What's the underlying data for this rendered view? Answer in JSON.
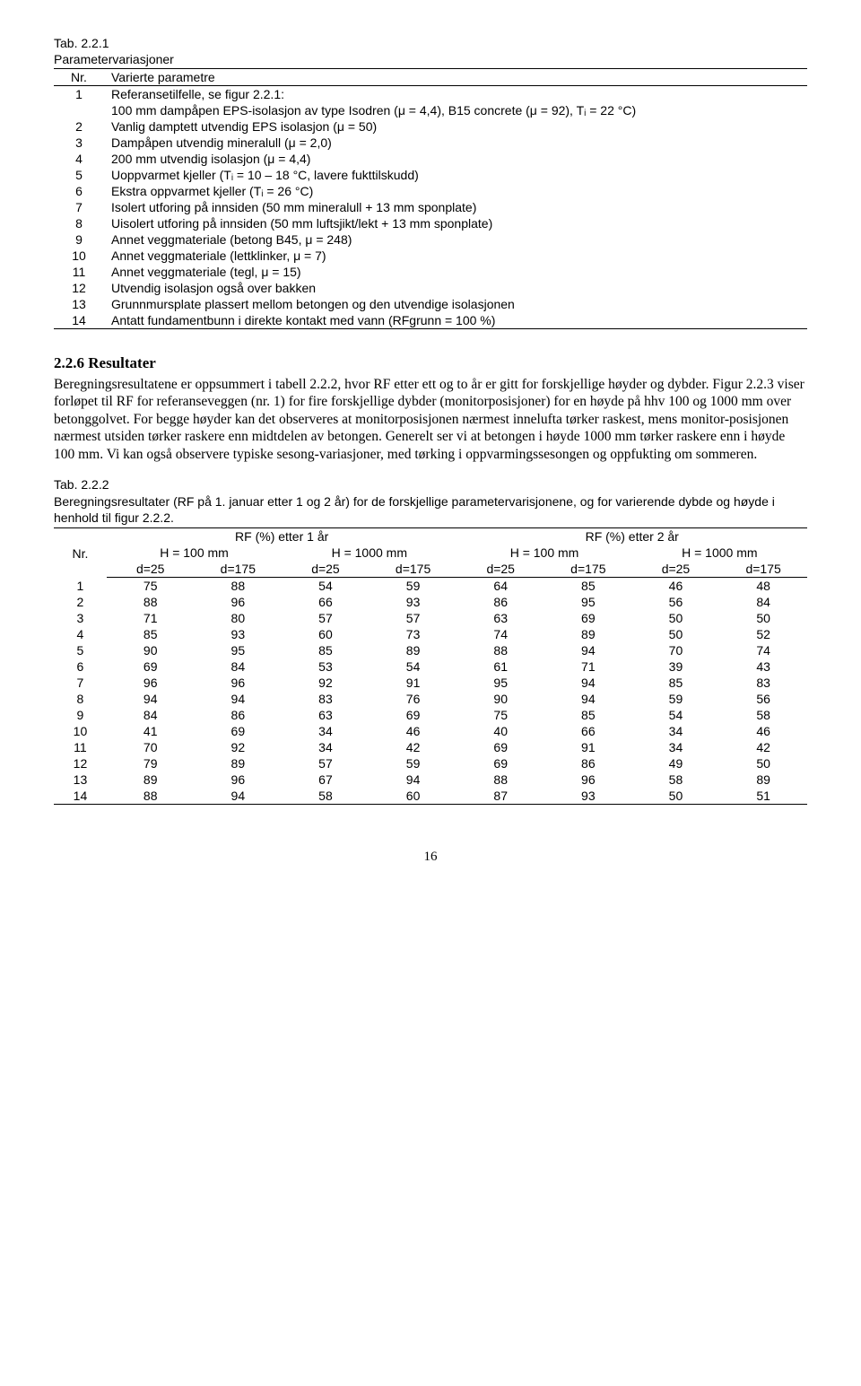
{
  "table1": {
    "label": "Tab. 2.2.1",
    "title": "Parametervariasjoner",
    "headers": {
      "nr": "Nr.",
      "param": "Varierte parametre"
    },
    "rows": [
      {
        "nr": "1",
        "text": "Referansetilfelle, se figur 2.2.1:",
        "sub": "100 mm dampåpen EPS-isolasjon av type Isodren (μ = 4,4), B15 concrete (μ = 92), Tᵢ = 22 °C)"
      },
      {
        "nr": "2",
        "text": "Vanlig damptett utvendig EPS isolasjon (μ = 50)"
      },
      {
        "nr": "3",
        "text": "Dampåpen utvendig mineralull (μ = 2,0)"
      },
      {
        "nr": "4",
        "text": "200 mm utvendig isolasjon (μ = 4,4)"
      },
      {
        "nr": "5",
        "text": "Uoppvarmet kjeller (Tᵢ = 10 – 18 °C, lavere fukttilskudd)"
      },
      {
        "nr": "6",
        "text": "Ekstra oppvarmet kjeller (Tᵢ = 26 °C)"
      },
      {
        "nr": "7",
        "text": "Isolert utforing på innsiden (50 mm mineralull + 13 mm sponplate)"
      },
      {
        "nr": "8",
        "text": "Uisolert utforing på innsiden (50 mm luftsjikt/lekt + 13 mm sponplate)"
      },
      {
        "nr": "9",
        "text": "Annet veggmateriale (betong B45, μ = 248)"
      },
      {
        "nr": "10",
        "text": "Annet veggmateriale (lettklinker, μ = 7)"
      },
      {
        "nr": "11",
        "text": "Annet veggmateriale (tegl, μ = 15)"
      },
      {
        "nr": "12",
        "text": "Utvendig isolasjon også over bakken"
      },
      {
        "nr": "13",
        "text": "Grunnmursplate plassert mellom betongen og den utvendige isolasjonen"
      },
      {
        "nr": "14",
        "text": "Antatt fundamentbunn i direkte kontakt med vann (RFgrunn = 100 %)"
      }
    ]
  },
  "section": {
    "heading": "2.2.6   Resultater",
    "body": "Beregningsresultatene er oppsummert i tabell 2.2.2, hvor RF etter ett og to år er gitt for forskjellige høyder og dybder. Figur 2.2.3 viser forløpet til RF for referanseveggen (nr. 1) for fire forskjellige dybder (monitorposisjoner) for en høyde på hhv 100 og 1000 mm over betonggolvet. For begge høyder kan det observeres at monitorposisjonen nærmest innelufta tørker raskest, mens monitor-posisjonen nærmest utsiden tørker raskere enn midtdelen av betongen. Generelt ser vi at betongen i høyde 1000 mm tørker raskere enn i høyde 100 mm. Vi kan også observere typiske sesong-variasjoner, med tørking i oppvarmingssesongen og oppfukting om sommeren."
  },
  "table2": {
    "label": "Tab. 2.2.2",
    "title": "Beregningsresultater (RF på 1. januar etter 1 og 2 år) for de forskjellige parametervarisjonene, og for varierende dybde og høyde i henhold til figur 2.2.2.",
    "headers": {
      "nr": "Nr.",
      "y1": "RF (%) etter 1 år",
      "y2": "RF (%) etter 2 år",
      "h100": "H = 100 mm",
      "h1000": "H = 1000 mm",
      "d25": "d=25",
      "d175": "d=175"
    },
    "rows": [
      {
        "nr": "1",
        "c": [
          75,
          88,
          54,
          59,
          64,
          85,
          46,
          48
        ]
      },
      {
        "nr": "2",
        "c": [
          88,
          96,
          66,
          93,
          86,
          95,
          56,
          84
        ]
      },
      {
        "nr": "3",
        "c": [
          71,
          80,
          57,
          57,
          63,
          69,
          50,
          50
        ]
      },
      {
        "nr": "4",
        "c": [
          85,
          93,
          60,
          73,
          74,
          89,
          50,
          52
        ]
      },
      {
        "nr": "5",
        "c": [
          90,
          95,
          85,
          89,
          88,
          94,
          70,
          74
        ]
      },
      {
        "nr": "6",
        "c": [
          69,
          84,
          53,
          54,
          61,
          71,
          39,
          43
        ]
      },
      {
        "nr": "7",
        "c": [
          96,
          96,
          92,
          91,
          95,
          94,
          85,
          83
        ]
      },
      {
        "nr": "8",
        "c": [
          94,
          94,
          83,
          76,
          90,
          94,
          59,
          56
        ]
      },
      {
        "nr": "9",
        "c": [
          84,
          86,
          63,
          69,
          75,
          85,
          54,
          58
        ]
      },
      {
        "nr": "10",
        "c": [
          41,
          69,
          34,
          46,
          40,
          66,
          34,
          46
        ]
      },
      {
        "nr": "11",
        "c": [
          70,
          92,
          34,
          42,
          69,
          91,
          34,
          42
        ]
      },
      {
        "nr": "12",
        "c": [
          79,
          89,
          57,
          59,
          69,
          86,
          49,
          50
        ]
      },
      {
        "nr": "13",
        "c": [
          89,
          96,
          67,
          94,
          88,
          96,
          58,
          89
        ]
      },
      {
        "nr": "14",
        "c": [
          88,
          94,
          58,
          60,
          87,
          93,
          50,
          51
        ]
      }
    ]
  },
  "page": "16"
}
